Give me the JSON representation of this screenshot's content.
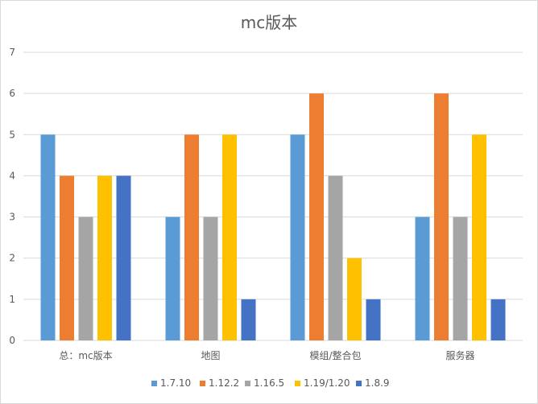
{
  "chart_data": {
    "type": "bar",
    "title": "mc版本",
    "xlabel": "",
    "ylabel": "",
    "ylim": [
      0,
      7
    ],
    "y_ticks": [
      0,
      1,
      2,
      3,
      4,
      5,
      6,
      7
    ],
    "grid": true,
    "legend_position": "bottom",
    "categories": [
      "总：mc版本",
      "地图",
      "模组/整合包",
      "服务器"
    ],
    "series": [
      {
        "name": "1.7.10",
        "color": "#5B9BD5",
        "values": [
          5,
          3,
          5,
          3
        ]
      },
      {
        "name": "1.12.2",
        "color": "#ED7D31",
        "values": [
          4,
          5,
          6,
          6
        ]
      },
      {
        "name": "1.16.5",
        "color": "#A5A5A5",
        "values": [
          3,
          3,
          4,
          3
        ]
      },
      {
        "name": "1.19/1.20",
        "color": "#FFC000",
        "values": [
          4,
          5,
          2,
          5
        ]
      },
      {
        "name": "1.8.9",
        "color": "#4472C4",
        "values": [
          4,
          1,
          1,
          1
        ]
      }
    ]
  }
}
